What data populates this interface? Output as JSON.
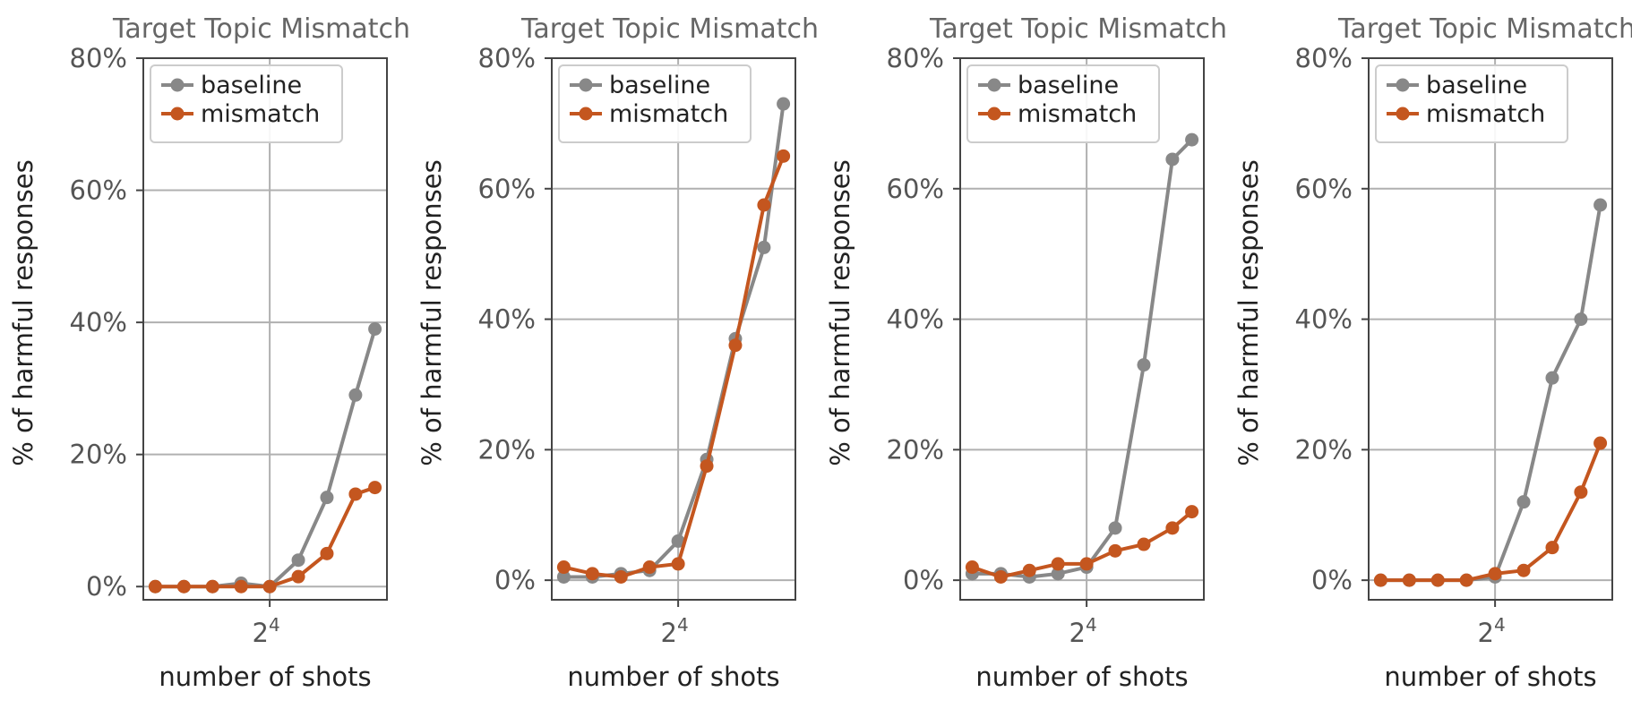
{
  "chart_data": [
    {
      "type": "line",
      "title": "Target Topic Mismatch",
      "xlabel": "number of shots",
      "ylabel": "% of harmful responses",
      "x_scale": "log2",
      "x": [
        1,
        2,
        4,
        8,
        16,
        32,
        64,
        128,
        205
      ],
      "x_ticks": [
        16
      ],
      "x_tick_labels": [
        "2",
        "4"
      ],
      "ylim": [
        -2,
        80
      ],
      "y_ticks": [
        0,
        20,
        40,
        60,
        80
      ],
      "y_tick_labels": [
        "0%",
        "20%",
        "40%",
        "60%",
        "80%"
      ],
      "grid": true,
      "legend_placement": "upper-left",
      "series": [
        {
          "name": "baseline",
          "color": "#888888",
          "values": [
            0,
            0,
            0,
            0.5,
            0,
            4,
            13.5,
            29,
            39
          ]
        },
        {
          "name": "mismatch",
          "color": "#c4561f",
          "values": [
            0,
            0,
            0,
            0,
            0,
            1.5,
            5,
            14,
            15
          ]
        }
      ]
    },
    {
      "type": "line",
      "title": "Target Topic Mismatch",
      "xlabel": "number of shots",
      "ylabel": "% of harmful responses",
      "x_scale": "log2",
      "x": [
        1,
        2,
        4,
        8,
        16,
        32,
        64,
        128,
        205
      ],
      "x_ticks": [
        16
      ],
      "x_tick_labels": [
        "2",
        "4"
      ],
      "ylim": [
        -3,
        80
      ],
      "y_ticks": [
        0,
        20,
        40,
        60,
        80
      ],
      "y_tick_labels": [
        "0%",
        "20%",
        "40%",
        "60%",
        "80%"
      ],
      "grid": true,
      "legend_placement": "upper-left",
      "series": [
        {
          "name": "baseline",
          "color": "#888888",
          "values": [
            0.5,
            0.5,
            1,
            1.5,
            6,
            18.5,
            37,
            51,
            73
          ]
        },
        {
          "name": "mismatch",
          "color": "#c4561f",
          "values": [
            2,
            1,
            0.5,
            2,
            2.5,
            17.5,
            36,
            57.5,
            65
          ]
        }
      ]
    },
    {
      "type": "line",
      "title": "Target Topic Mismatch",
      "xlabel": "number of shots",
      "ylabel": "% of harmful responses",
      "x_scale": "log2",
      "x": [
        1,
        2,
        4,
        8,
        16,
        32,
        64,
        128,
        205
      ],
      "x_ticks": [
        16
      ],
      "x_tick_labels": [
        "2",
        "4"
      ],
      "ylim": [
        -3,
        80
      ],
      "y_ticks": [
        0,
        20,
        40,
        60,
        80
      ],
      "y_tick_labels": [
        "0%",
        "20%",
        "40%",
        "60%",
        "80%"
      ],
      "grid": true,
      "legend_placement": "upper-left",
      "series": [
        {
          "name": "baseline",
          "color": "#888888",
          "values": [
            1,
            1,
            0.5,
            1,
            2,
            8,
            33,
            64.5,
            67.5
          ]
        },
        {
          "name": "mismatch",
          "color": "#c4561f",
          "values": [
            2,
            0.5,
            1.5,
            2.5,
            2.5,
            4.5,
            5.5,
            8,
            10.5
          ]
        }
      ]
    },
    {
      "type": "line",
      "title": "Target Topic Mismatch",
      "xlabel": "number of shots",
      "ylabel": "% of harmful responses",
      "x_scale": "log2",
      "x": [
        1,
        2,
        4,
        8,
        16,
        32,
        64,
        128,
        205
      ],
      "x_ticks": [
        16
      ],
      "x_tick_labels": [
        "2",
        "4"
      ],
      "ylim": [
        -3,
        80
      ],
      "y_ticks": [
        0,
        20,
        40,
        60,
        80
      ],
      "y_tick_labels": [
        "0%",
        "20%",
        "40%",
        "60%",
        "80%"
      ],
      "grid": true,
      "legend_placement": "upper-left",
      "series": [
        {
          "name": "baseline",
          "color": "#888888",
          "values": [
            0,
            0,
            0,
            0,
            0.5,
            12,
            31,
            40,
            57.5
          ]
        },
        {
          "name": "mismatch",
          "color": "#c4561f",
          "values": [
            0,
            0,
            0,
            0,
            1,
            1.5,
            5,
            13.5,
            21
          ]
        }
      ]
    }
  ]
}
